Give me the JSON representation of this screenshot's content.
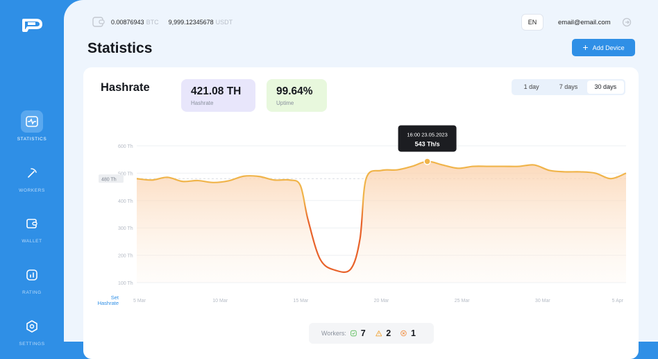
{
  "sidebar": {
    "items": [
      {
        "label": "STATISTICS",
        "icon": "pulse-icon",
        "active": true
      },
      {
        "label": "WORKERS",
        "icon": "pickaxe-icon",
        "active": false
      },
      {
        "label": "WALLET",
        "icon": "wallet-icon",
        "active": false
      },
      {
        "label": "RATING",
        "icon": "bar-chart-icon",
        "active": false
      },
      {
        "label": "SETTINGS",
        "icon": "hexagon-settings-icon",
        "active": false
      }
    ]
  },
  "header": {
    "btc_amount": "0.00876943",
    "btc_unit": "BTC",
    "usdt_amount": "9,999.12345678",
    "usdt_unit": "USDT",
    "language": "EN",
    "email": "email@email.com"
  },
  "page": {
    "title": "Statistics",
    "add_device_label": "Add Device"
  },
  "card": {
    "title": "Hashrate",
    "stats": [
      {
        "value": "421.08 TH",
        "label": "Hashrate"
      },
      {
        "value": "99.64%",
        "label": "Uptime"
      }
    ],
    "ranges": [
      "1 day",
      "7 days",
      "30 days"
    ],
    "selected_range": "30 days",
    "set_hashrate_label": "Set Hashrate",
    "workers": {
      "label": "Workers:",
      "ok": "7",
      "warning": "2",
      "error": "1"
    }
  },
  "chart_data": {
    "type": "area",
    "ylabel": "",
    "y_ticks": [
      "600 Th",
      "500 Th",
      "400 Th",
      "300 Th",
      "200 Th",
      "100 Th"
    ],
    "ylim": [
      100,
      600
    ],
    "reference_line": {
      "value": 480,
      "label": "480 Th"
    },
    "x_ticks": [
      "5 Mar",
      "10 Mar",
      "15 Mar",
      "20 Mar",
      "25 Mar",
      "30 Mar",
      "5 Apr"
    ],
    "series": [
      {
        "x_day": [
          0,
          1,
          2,
          3,
          4,
          5,
          6,
          7,
          8,
          9,
          10,
          10.7,
          11.2,
          12,
          13,
          14,
          14.6,
          15,
          16,
          17,
          18,
          19,
          20,
          21,
          22,
          23,
          24,
          25,
          26,
          27,
          28,
          29,
          30,
          31,
          32
        ],
        "values": [
          480,
          475,
          485,
          470,
          473,
          466,
          472,
          489,
          488,
          475,
          475,
          455,
          330,
          185,
          145,
          150,
          260,
          480,
          510,
          512,
          525,
          543,
          530,
          518,
          525,
          525,
          525,
          525,
          530,
          510,
          505,
          505,
          500,
          480,
          500
        ]
      }
    ],
    "tooltip": {
      "time": "16:00",
      "date": "23.05.2023",
      "value": "543 Th/s"
    }
  },
  "colors": {
    "accent": "#2f8fe6",
    "line": "#f0b44a",
    "drop": "#e8622a",
    "ok": "#4bb84b",
    "warning": "#f0a437",
    "error": "#f08a3a"
  }
}
